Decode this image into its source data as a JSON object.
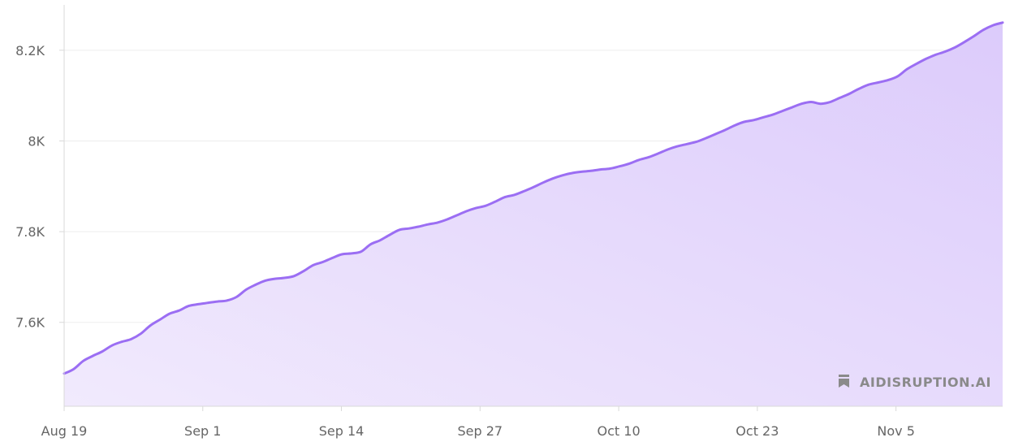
{
  "chart_data": {
    "type": "area",
    "title": "",
    "xlabel": "",
    "ylabel": "",
    "x_start": "2024-08-19",
    "x_end": "2024-11-15",
    "xticks": [
      "Aug 19",
      "Sep 1",
      "Sep 14",
      "Sep 27",
      "Oct 10",
      "Oct 23",
      "Nov 5"
    ],
    "yticks": [
      {
        "value": 7600,
        "label": "7.6K"
      },
      {
        "value": 7800,
        "label": "7.8K"
      },
      {
        "value": 8000,
        "label": "8K"
      },
      {
        "value": 8200,
        "label": "8.2K"
      }
    ],
    "ylim": [
      7415,
      8300
    ],
    "grid": true,
    "colors": {
      "line": "#9b6ef3",
      "fill_top": "#dccbfb",
      "fill_bottom": "#f1eafd",
      "grid": "#ededed",
      "axis": "#d9d9d9"
    },
    "series": [
      {
        "name": "",
        "values": [
          7487,
          7497,
          7515,
          7526,
          7536,
          7549,
          7557,
          7563,
          7575,
          7593,
          7606,
          7619,
          7626,
          7636,
          7640,
          7643,
          7646,
          7648,
          7656,
          7672,
          7683,
          7692,
          7696,
          7698,
          7702,
          7713,
          7726,
          7733,
          7742,
          7750,
          7752,
          7756,
          7772,
          7781,
          7793,
          7804,
          7807,
          7811,
          7816,
          7820,
          7827,
          7836,
          7845,
          7852,
          7857,
          7866,
          7876,
          7881,
          7889,
          7898,
          7908,
          7917,
          7924,
          7929,
          7932,
          7934,
          7937,
          7939,
          7944,
          7950,
          7958,
          7964,
          7972,
          7981,
          7988,
          7993,
          7998,
          8006,
          8015,
          8024,
          8034,
          8042,
          8046,
          8052,
          8058,
          8066,
          8074,
          8082,
          8086,
          8082,
          8086,
          8095,
          8104,
          8115,
          8124,
          8129,
          8134,
          8142,
          8158,
          8170,
          8181,
          8190,
          8197,
          8206,
          8218,
          8231,
          8245,
          8255,
          8261
        ]
      }
    ]
  },
  "watermark": {
    "text": "AIDISRUPTION.AI",
    "icon": "bookmark-icon"
  }
}
